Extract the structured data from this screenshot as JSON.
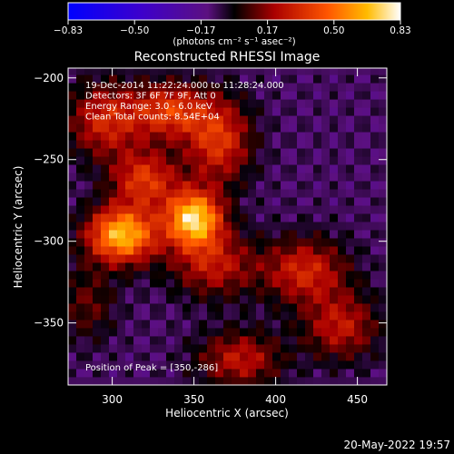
{
  "chart_data": {
    "type": "heatmap",
    "title": "Reconstructed RHESSI Image",
    "xlabel": "Heliocentric X (arcsec)",
    "ylabel": "Heliocentric Y (arcsec)",
    "xlim": [
      273,
      468
    ],
    "ylim": [
      -388,
      -194
    ],
    "x_ticks": [
      300,
      350,
      400,
      450
    ],
    "y_ticks": [
      -200,
      -250,
      -300,
      -350
    ],
    "colorbar": {
      "ticks": [
        "-0.83",
        "-0.50",
        "-0.17",
        "0.17",
        "0.50",
        "0.83"
      ],
      "range": [
        -0.83,
        0.83
      ],
      "units_label": "(photons cm⁻² s⁻¹ asec⁻²)"
    },
    "annotations": [
      "19-Dec-2014 11:22:24.000 to 11:28:24.000",
      "Detectors: 3F 6F 7F 9F, Att 0",
      "Energy Range: 3.0 - 6.0 keV",
      "Clean     Total counts: 8.54E+04"
    ],
    "peak_label": "Position of Peak = [350,-286]",
    "peak": [
      350,
      -286
    ],
    "blobs": [
      {
        "x": 350,
        "y": -286,
        "amp": 0.83,
        "sx": 12,
        "sy": 12
      },
      {
        "x": 306,
        "y": -296,
        "amp": 0.78,
        "sx": 15,
        "sy": 12
      },
      {
        "x": 320,
        "y": -262,
        "amp": 0.45,
        "sx": 14,
        "sy": 12
      },
      {
        "x": 296,
        "y": -226,
        "amp": 0.4,
        "sx": 16,
        "sy": 16
      },
      {
        "x": 335,
        "y": -220,
        "amp": 0.45,
        "sx": 16,
        "sy": 12
      },
      {
        "x": 365,
        "y": -238,
        "amp": 0.45,
        "sx": 14,
        "sy": 18
      },
      {
        "x": 362,
        "y": -314,
        "amp": 0.35,
        "sx": 18,
        "sy": 14
      },
      {
        "x": 418,
        "y": -318,
        "amp": 0.4,
        "sx": 18,
        "sy": 14
      },
      {
        "x": 440,
        "y": -352,
        "amp": 0.35,
        "sx": 16,
        "sy": 14
      },
      {
        "x": 378,
        "y": -372,
        "amp": 0.35,
        "sx": 18,
        "sy": 12
      },
      {
        "x": 285,
        "y": -338,
        "amp": 0.2,
        "sx": 12,
        "sy": 16
      }
    ],
    "background": -0.1
  },
  "timestamp": "20-May-2022 19:57"
}
